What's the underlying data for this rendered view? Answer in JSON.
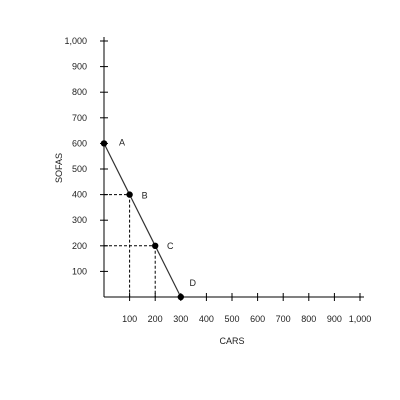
{
  "chart_data": {
    "type": "line",
    "xlabel": "CARS",
    "ylabel": "SOFAS",
    "xlim": [
      0,
      1000
    ],
    "ylim": [
      0,
      1000
    ],
    "x_ticks": [
      "100",
      "200",
      "300",
      "400",
      "500",
      "600",
      "700",
      "800",
      "900",
      "1,000"
    ],
    "y_ticks": [
      "100",
      "200",
      "300",
      "400",
      "500",
      "600",
      "700",
      "800",
      "900",
      "1,000"
    ],
    "x_tick_values": [
      100,
      200,
      300,
      400,
      500,
      600,
      700,
      800,
      900,
      1000
    ],
    "y_tick_values": [
      100,
      200,
      300,
      400,
      500,
      600,
      700,
      800,
      900,
      1000
    ],
    "points": [
      {
        "label": "A",
        "x": 0,
        "y": 600
      },
      {
        "label": "B",
        "x": 100,
        "y": 400
      },
      {
        "label": "C",
        "x": 200,
        "y": 200
      },
      {
        "label": "D",
        "x": 300,
        "y": 0
      }
    ],
    "dashed_guides": [
      "B",
      "C"
    ],
    "grid": false,
    "colors": {
      "line": "#333333",
      "point": "#000000",
      "axis": "#000000"
    }
  }
}
